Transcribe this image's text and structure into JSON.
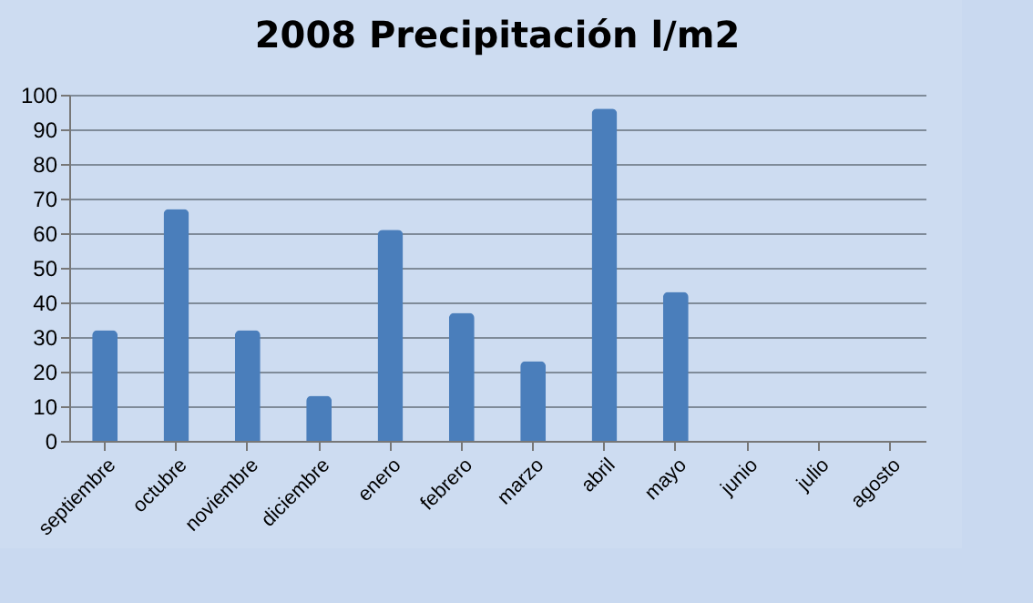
{
  "chart_data": {
    "type": "bar",
    "title": "2008 Precipitación l/m2",
    "categories": [
      "septiembre",
      "octubre",
      "noviembre",
      "diciembre",
      "enero",
      "febrero",
      "marzo",
      "abril",
      "mayo",
      "junio",
      "julio",
      "agosto"
    ],
    "values": [
      32,
      67,
      32,
      13,
      61,
      37,
      23,
      96,
      43,
      0,
      0,
      0
    ],
    "color": "#4a7ebb",
    "ylim": [
      0,
      100
    ],
    "yticks": [
      0,
      10,
      20,
      30,
      40,
      50,
      60,
      70,
      80,
      90,
      100
    ],
    "grid": "y"
  }
}
